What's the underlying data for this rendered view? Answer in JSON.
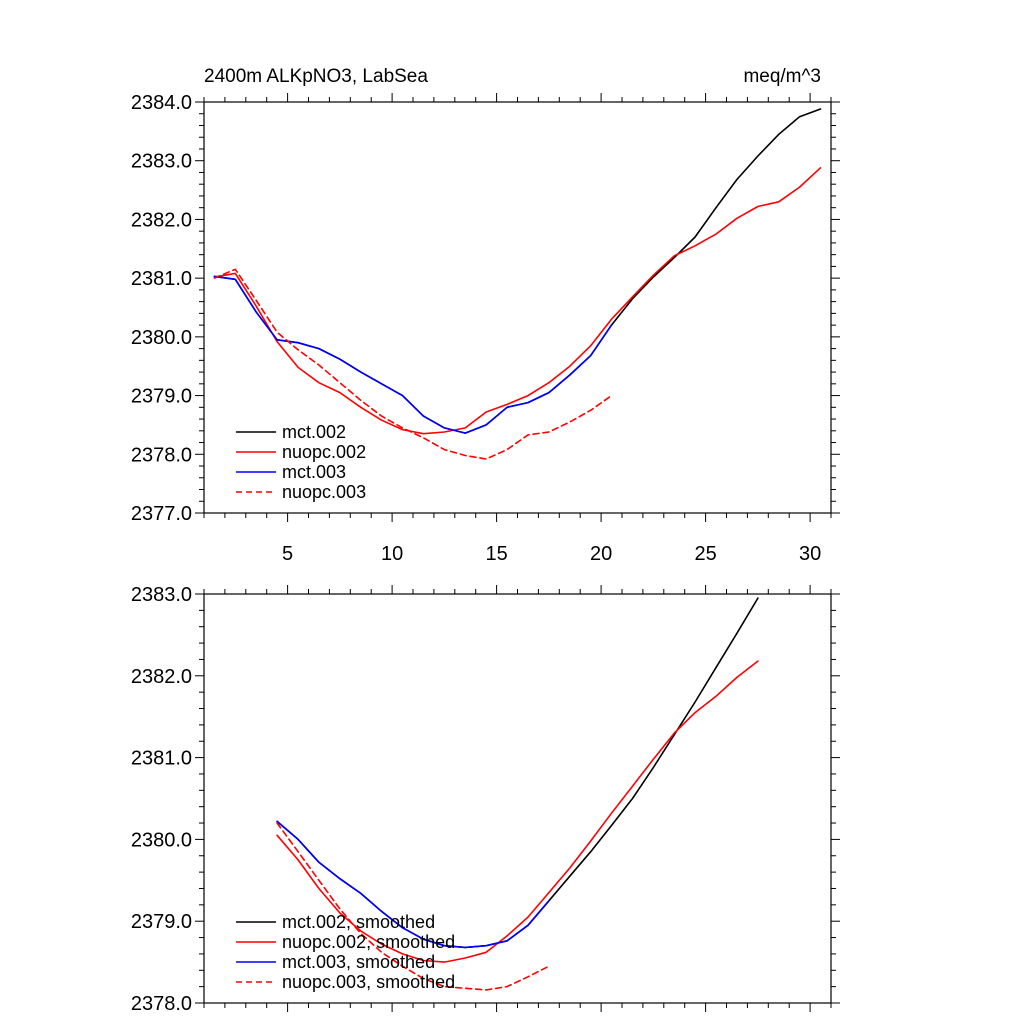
{
  "chart_data": [
    {
      "type": "line",
      "title_left": "2400m ALKpNO3, LabSea",
      "title_right": "meq/m^3",
      "xlim": [
        1,
        31
      ],
      "ylim": [
        2377.0,
        2384.0
      ],
      "x_ticks": [
        5,
        10,
        15,
        20,
        25,
        30
      ],
      "x_tick_labels": [
        "5",
        "10",
        "15",
        "20",
        "25",
        "30"
      ],
      "y_ticks": [
        2377.0,
        2378.0,
        2379.0,
        2380.0,
        2381.0,
        2382.0,
        2383.0,
        2384.0
      ],
      "y_tick_labels": [
        "2377.0",
        "2378.0",
        "2379.0",
        "2380.0",
        "2381.0",
        "2382.0",
        "2383.0",
        "2384.0"
      ],
      "series": [
        {
          "name": "mct.002",
          "color": "#000000",
          "dash": "solid",
          "x": [
            1.5,
            2.5,
            3.5,
            4.5,
            5.5,
            6.5,
            7.5,
            8.5,
            9.5,
            10.5,
            11.5,
            12.5,
            13.5,
            14.5,
            15.5,
            16.5,
            17.5,
            18.5,
            19.5,
            20.5,
            21.5,
            22.5,
            23.5,
            24.5,
            25.5,
            26.5,
            27.5,
            28.5,
            29.5,
            30.5
          ],
          "values": [
            2381.03,
            2380.98,
            2380.42,
            2379.95,
            2379.9,
            2379.8,
            2379.62,
            2379.4,
            2379.2,
            2379.0,
            2378.65,
            2378.45,
            2378.36,
            2378.5,
            2378.8,
            2378.88,
            2379.05,
            2379.35,
            2379.68,
            2380.2,
            2380.65,
            2381.02,
            2381.35,
            2381.7,
            2382.2,
            2382.68,
            2383.08,
            2383.45,
            2383.75,
            2383.88
          ]
        },
        {
          "name": "nuopc.002",
          "color": "#ff0000",
          "dash": "solid",
          "x": [
            1.5,
            2.5,
            3.5,
            4.5,
            5.5,
            6.5,
            7.5,
            8.5,
            9.5,
            10.5,
            11.5,
            12.5,
            13.5,
            14.5,
            15.5,
            16.5,
            17.5,
            18.5,
            19.5,
            20.5,
            21.5,
            22.5,
            23.5,
            24.5,
            25.5,
            26.5,
            27.5,
            28.5,
            29.5,
            30.5
          ],
          "values": [
            2381.02,
            2381.08,
            2380.52,
            2379.92,
            2379.48,
            2379.22,
            2379.05,
            2378.8,
            2378.58,
            2378.42,
            2378.35,
            2378.38,
            2378.45,
            2378.72,
            2378.85,
            2379.0,
            2379.22,
            2379.5,
            2379.85,
            2380.3,
            2380.68,
            2381.05,
            2381.38,
            2381.55,
            2381.75,
            2382.02,
            2382.22,
            2382.3,
            2382.55,
            2382.88
          ]
        },
        {
          "name": "mct.003",
          "color": "#0000ff",
          "dash": "solid",
          "x": [
            1.5,
            2.5,
            3.5,
            4.5,
            5.5,
            6.5,
            7.5,
            8.5,
            9.5,
            10.5,
            11.5,
            12.5,
            13.5,
            14.5,
            15.5,
            16.5,
            17.5,
            18.5,
            19.5,
            20.5
          ],
          "values": [
            2381.03,
            2380.98,
            2380.42,
            2379.95,
            2379.9,
            2379.8,
            2379.62,
            2379.4,
            2379.2,
            2379.0,
            2378.65,
            2378.45,
            2378.36,
            2378.5,
            2378.8,
            2378.88,
            2379.05,
            2379.35,
            2379.68,
            2380.2
          ]
        },
        {
          "name": "nuopc.003",
          "color": "#ff0000",
          "dash": "dashed",
          "x": [
            1.5,
            2.5,
            3.5,
            4.5,
            5.5,
            6.5,
            7.5,
            8.5,
            9.5,
            10.5,
            11.5,
            12.5,
            13.5,
            14.5,
            15.5,
            16.5,
            17.5,
            18.5,
            19.5,
            20.5
          ],
          "values": [
            2381.0,
            2381.15,
            2380.62,
            2380.08,
            2379.78,
            2379.52,
            2379.22,
            2378.92,
            2378.65,
            2378.45,
            2378.28,
            2378.08,
            2377.98,
            2377.92,
            2378.08,
            2378.33,
            2378.38,
            2378.55,
            2378.75,
            2379.0
          ]
        }
      ]
    },
    {
      "type": "line",
      "xlim": [
        1,
        31
      ],
      "ylim": [
        2378.0,
        2383.0
      ],
      "x_ticks": [
        5,
        10,
        15,
        20,
        25,
        30
      ],
      "y_ticks": [
        2378.0,
        2379.0,
        2380.0,
        2381.0,
        2382.0,
        2383.0
      ],
      "y_tick_labels": [
        "2378.0",
        "2379.0",
        "2380.0",
        "2381.0",
        "2382.0",
        "2383.0"
      ],
      "series": [
        {
          "name": "mct.002, smoothed",
          "color": "#000000",
          "dash": "solid",
          "x": [
            4.5,
            5.5,
            6.5,
            7.5,
            8.5,
            9.5,
            10.5,
            11.5,
            12.5,
            13.5,
            14.5,
            15.5,
            16.5,
            17.5,
            18.5,
            19.5,
            20.5,
            21.5,
            22.5,
            23.5,
            24.5,
            25.5,
            26.5,
            27.5
          ],
          "values": [
            2380.22,
            2380.0,
            2379.72,
            2379.52,
            2379.34,
            2379.12,
            2378.92,
            2378.78,
            2378.7,
            2378.68,
            2378.7,
            2378.76,
            2378.95,
            2379.25,
            2379.55,
            2379.85,
            2380.17,
            2380.5,
            2380.88,
            2381.28,
            2381.68,
            2382.1,
            2382.52,
            2382.95
          ]
        },
        {
          "name": "nuopc.002, smoothed",
          "color": "#ff0000",
          "dash": "solid",
          "x": [
            4.5,
            5.5,
            6.5,
            7.5,
            8.5,
            9.5,
            10.5,
            11.5,
            12.5,
            13.5,
            14.5,
            15.5,
            16.5,
            17.5,
            18.5,
            19.5,
            20.5,
            21.5,
            22.5,
            23.5,
            24.5,
            25.5,
            26.5,
            27.5
          ],
          "values": [
            2380.05,
            2379.75,
            2379.4,
            2379.1,
            2378.88,
            2378.72,
            2378.6,
            2378.52,
            2378.5,
            2378.55,
            2378.62,
            2378.82,
            2379.05,
            2379.35,
            2379.65,
            2379.98,
            2380.32,
            2380.65,
            2380.98,
            2381.3,
            2381.55,
            2381.75,
            2381.98,
            2382.18
          ]
        },
        {
          "name": "mct.003, smoothed",
          "color": "#0000ff",
          "dash": "solid",
          "x": [
            4.5,
            5.5,
            6.5,
            7.5,
            8.5,
            9.5,
            10.5,
            11.5,
            12.5,
            13.5,
            14.5,
            15.5,
            16.5,
            17.5
          ],
          "values": [
            2380.22,
            2380.0,
            2379.72,
            2379.52,
            2379.34,
            2379.12,
            2378.92,
            2378.78,
            2378.7,
            2378.68,
            2378.7,
            2378.76,
            2378.95,
            2379.25
          ]
        },
        {
          "name": "nuopc.003, smoothed",
          "color": "#ff0000",
          "dash": "dashed",
          "x": [
            4.5,
            5.5,
            6.5,
            7.5,
            8.5,
            9.5,
            10.5,
            11.5,
            12.5,
            13.5,
            14.5,
            15.5,
            16.5,
            17.5
          ],
          "values": [
            2380.2,
            2379.85,
            2379.5,
            2379.15,
            2378.85,
            2378.62,
            2378.45,
            2378.3,
            2378.2,
            2378.18,
            2378.16,
            2378.2,
            2378.32,
            2378.45
          ]
        }
      ]
    }
  ]
}
